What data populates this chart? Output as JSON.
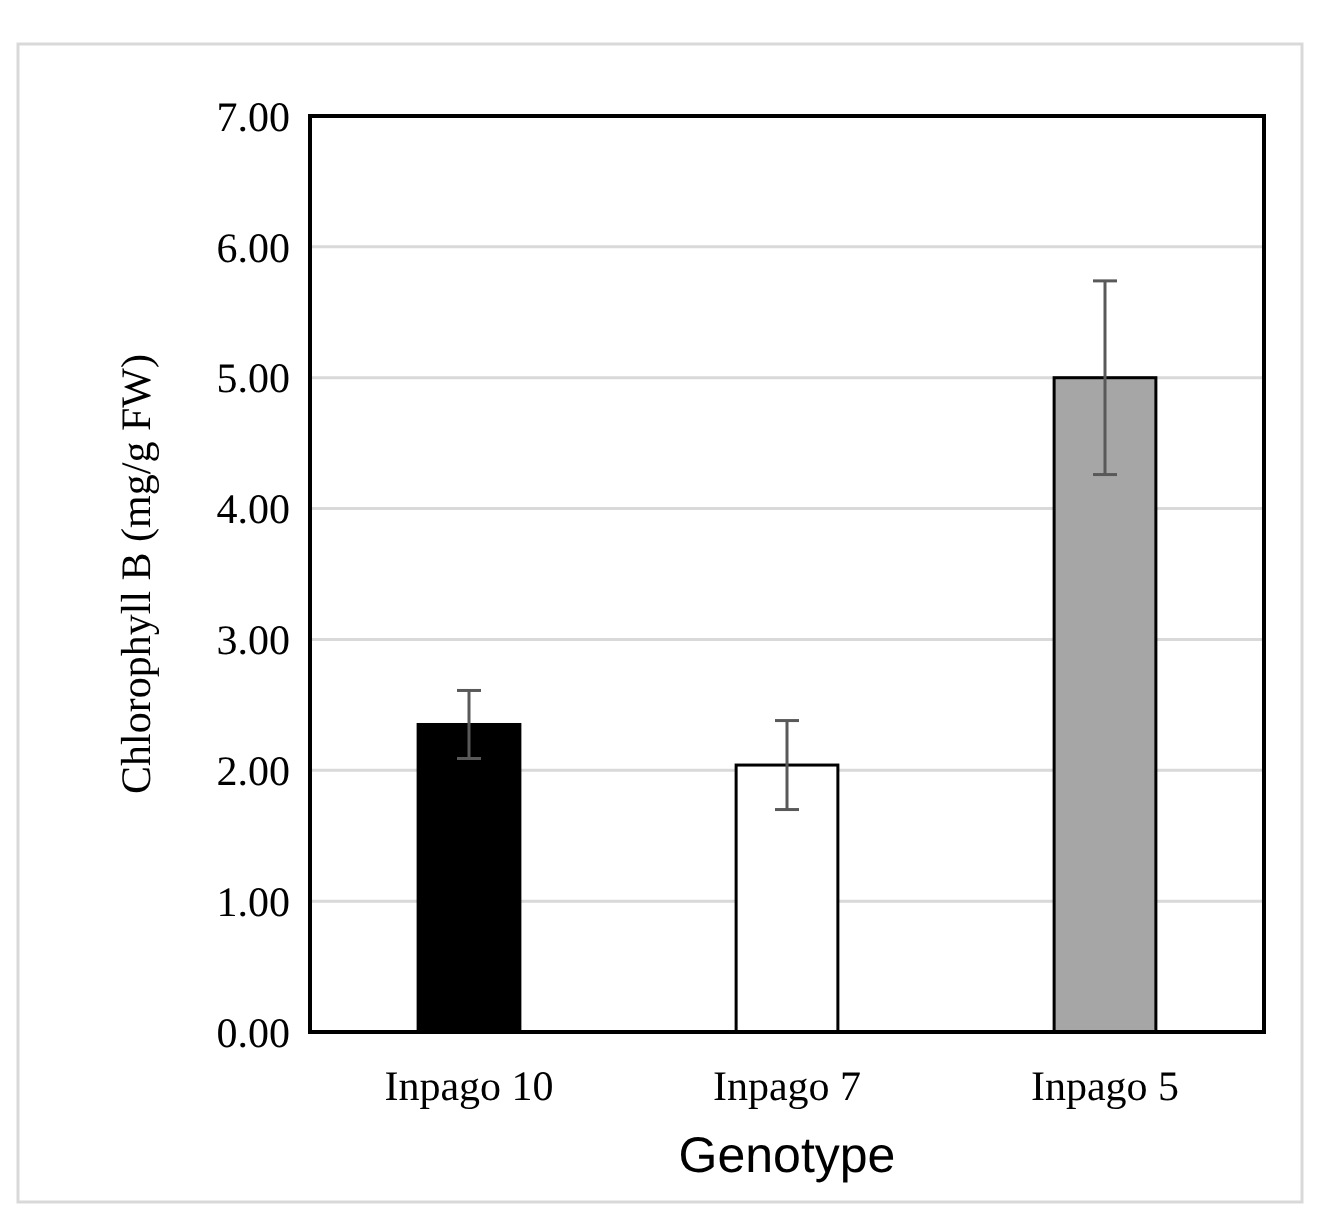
{
  "chart_data": {
    "type": "bar",
    "xlabel": "Genotype",
    "ylabel": "Chlorophyll B (mg/g FW)",
    "categories": [
      "Inpago 10",
      "Inpago 7",
      "Inpago 5"
    ],
    "values": [
      2.35,
      2.04,
      5.0
    ],
    "colors": [
      "#000000",
      "#ffffff",
      "#a6a6a6"
    ],
    "errors": [
      0.26,
      0.34,
      0.74
    ],
    "ylim": [
      0,
      7
    ],
    "yticks": [
      {
        "value": 0,
        "label": "0.00"
      },
      {
        "value": 1,
        "label": "1.00"
      },
      {
        "value": 2,
        "label": "2.00"
      },
      {
        "value": 3,
        "label": "3.00"
      },
      {
        "value": 4,
        "label": "4.00"
      },
      {
        "value": 5,
        "label": "5.00"
      },
      {
        "value": 6,
        "label": "6.00"
      },
      {
        "value": 7,
        "label": "7.00"
      }
    ],
    "grid": "y"
  }
}
